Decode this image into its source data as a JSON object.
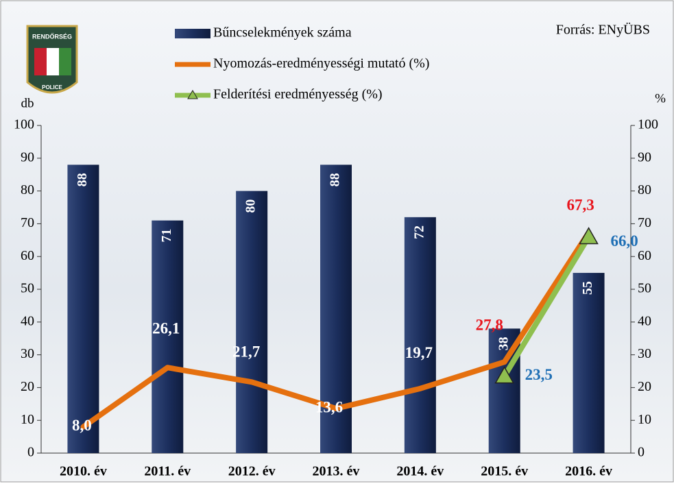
{
  "chart_data": {
    "type": "bar",
    "source": "Forrás: ENyÜBS",
    "logo_texts": [
      "RENDŐRSÉG",
      "POLICE"
    ],
    "ylabel": "db",
    "y2label": "%",
    "categories": [
      "2010. év",
      "2011. év",
      "2012. év",
      "2013. év",
      "2014. év",
      "2015. év",
      "2016. év"
    ],
    "series": [
      {
        "name": "Bűncselekmények száma",
        "type": "bar",
        "axis": "y",
        "color": "#1c2f5e",
        "values": [
          88,
          71,
          80,
          88,
          72,
          38,
          55
        ]
      },
      {
        "name": "Nyomozás-eredményességi mutató (%)",
        "type": "line",
        "axis": "y2",
        "color": "#e5700f",
        "values": [
          8.0,
          26.1,
          21.7,
          13.6,
          19.7,
          27.8,
          67.3
        ],
        "value_labels": [
          "8,0",
          "26,1",
          "21,7",
          "13,6",
          "19,7",
          "27,8",
          "67,3"
        ]
      },
      {
        "name": "Felderítési eredményesség (%)",
        "type": "line",
        "axis": "y2",
        "color": "#8fbf4f",
        "marker": "triangle",
        "values": [
          null,
          null,
          null,
          null,
          null,
          23.5,
          66.0
        ],
        "value_labels": [
          null,
          null,
          null,
          null,
          null,
          "23,5",
          "66,0"
        ]
      }
    ],
    "ylim": [
      0,
      100
    ],
    "yticks": [
      0,
      10,
      20,
      30,
      40,
      50,
      60,
      70,
      80,
      90,
      100
    ],
    "y2lim": [
      0,
      100
    ],
    "y2ticks": [
      0,
      10,
      20,
      30,
      40,
      50,
      60,
      70,
      80,
      90,
      100
    ]
  }
}
